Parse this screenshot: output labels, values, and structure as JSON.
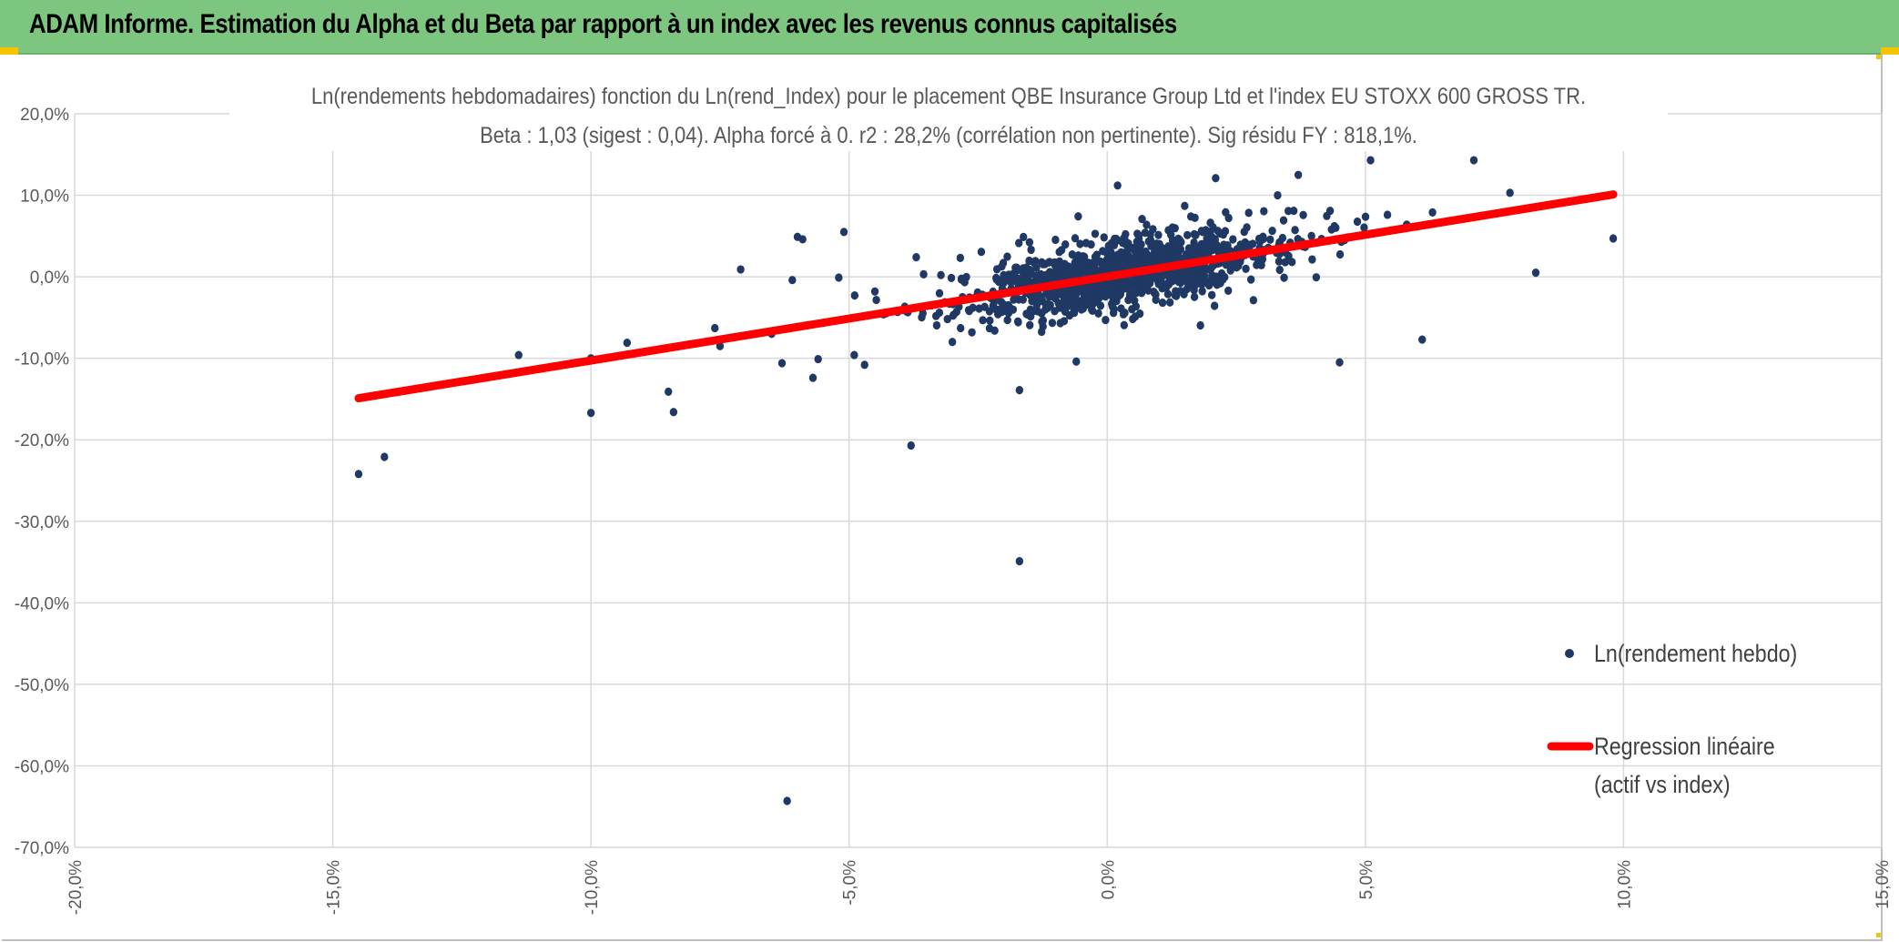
{
  "header": {
    "title": "ADAM Informe. Estimation du Alpha et du Beta par rapport à un index avec les revenus connus capitalisés"
  },
  "colors": {
    "banner": "#7dc67f",
    "points": "#1f3864",
    "regression": "#ff0000",
    "grid": "#d9d9d9"
  },
  "chart_data": {
    "type": "scatter",
    "title": "Ln(rendements hebdomadaires) fonction du Ln(rend_Index) pour le placement QBE Insurance Group Ltd et l'index EU STOXX 600 GROSS TR.",
    "subtitle": "Beta : 1,03 (sigest : 0,04). Alpha forcé à 0. r2 : 28,2% (corrélation non pertinente). Sig résidu FY : 818,1%.",
    "xlabel": "",
    "ylabel": "",
    "xlim": [
      -0.2,
      0.15
    ],
    "ylim": [
      -0.7,
      0.2
    ],
    "x_ticks": [
      -0.2,
      -0.15,
      -0.1,
      -0.05,
      0.0,
      0.05,
      0.1,
      0.15
    ],
    "y_ticks": [
      0.2,
      0.1,
      0.0,
      -0.1,
      -0.2,
      -0.3,
      -0.4,
      -0.5,
      -0.6,
      -0.7
    ],
    "x_tick_labels": [
      "-20,0%",
      "-15,0%",
      "-10,0%",
      "-5,0%",
      "0,0%",
      "5,0%",
      "10,0%",
      "15,0%"
    ],
    "y_tick_labels": [
      "20,0%",
      "10,0%",
      "0,0%",
      "-10,0%",
      "-20,0%",
      "-30,0%",
      "-40,0%",
      "-50,0%",
      "-60,0%",
      "-70,0%"
    ],
    "grid": true,
    "legend_position": "right",
    "series": [
      {
        "name": "Ln(rendement hebdo)",
        "kind": "scatter",
        "color": "#1f3864",
        "cluster": {
          "count": 1100,
          "x_mean": 0.003,
          "x_sd": 0.016,
          "beta": 1.03,
          "resid_sd": 0.022
        },
        "points": [
          [
            -0.145,
            -0.242
          ],
          [
            -0.14,
            -0.221
          ],
          [
            -0.114,
            -0.096
          ],
          [
            -0.1,
            -0.1
          ],
          [
            -0.1,
            -0.167
          ],
          [
            -0.093,
            -0.081
          ],
          [
            -0.085,
            -0.141
          ],
          [
            -0.084,
            -0.166
          ],
          [
            -0.076,
            -0.063
          ],
          [
            -0.075,
            -0.085
          ],
          [
            -0.071,
            0.009
          ],
          [
            -0.063,
            -0.106
          ],
          [
            -0.062,
            -0.643
          ],
          [
            -0.06,
            0.049
          ],
          [
            -0.059,
            0.046
          ],
          [
            -0.057,
            -0.124
          ],
          [
            -0.056,
            -0.101
          ],
          [
            -0.051,
            0.055
          ],
          [
            -0.049,
            -0.096
          ],
          [
            -0.047,
            -0.108
          ],
          [
            -0.038,
            -0.207
          ],
          [
            -0.037,
            0.024
          ],
          [
            -0.017,
            -0.139
          ],
          [
            -0.017,
            -0.349
          ],
          [
            -0.006,
            -0.104
          ],
          [
            0.002,
            0.112
          ],
          [
            0.015,
            0.087
          ],
          [
            0.021,
            0.121
          ],
          [
            0.033,
            0.1
          ],
          [
            0.037,
            0.125
          ],
          [
            0.051,
            0.143
          ],
          [
            0.071,
            0.143
          ],
          [
            0.045,
            -0.105
          ],
          [
            0.061,
            -0.077
          ],
          [
            0.078,
            0.103
          ],
          [
            0.083,
            0.005
          ],
          [
            0.098,
            0.047
          ],
          [
            0.058,
            0.064
          ],
          [
            0.063,
            0.079
          ],
          [
            -0.065,
            -0.07
          ],
          [
            -0.061,
            -0.004
          ],
          [
            -0.052,
            -0.001
          ],
          [
            -0.045,
            -0.018
          ],
          [
            -0.034,
            -0.035
          ],
          [
            -0.03,
            -0.08
          ]
        ]
      },
      {
        "name": "Regression linéaire (actif vs index)",
        "kind": "line",
        "color": "#ff0000",
        "x": [
          -0.145,
          0.098
        ],
        "y": [
          -0.149,
          0.101
        ]
      }
    ],
    "legend": [
      "Ln(rendement hebdo)",
      "Regression linéaire",
      "(actif vs index)"
    ]
  }
}
